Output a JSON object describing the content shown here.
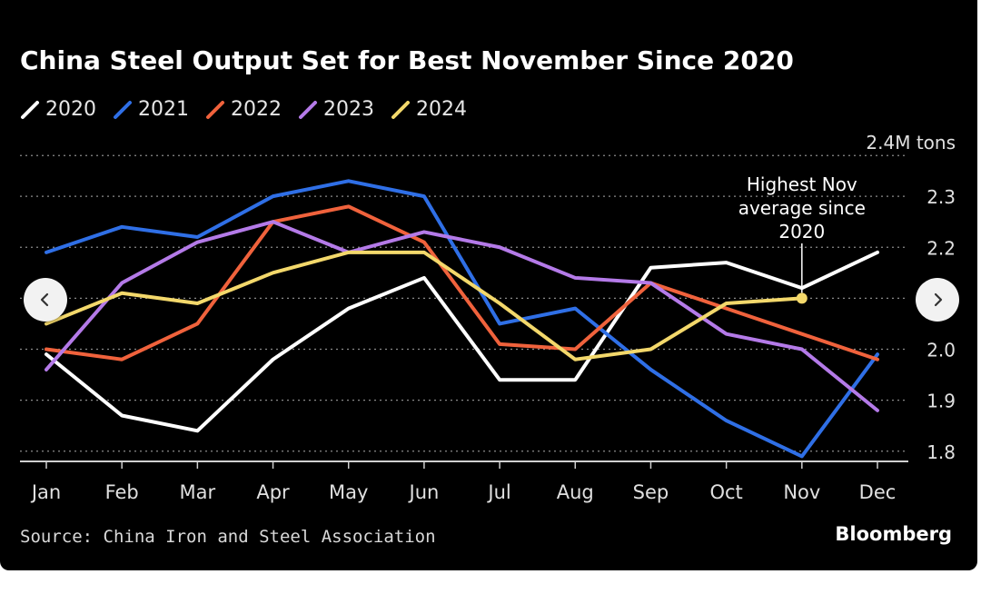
{
  "title": "China Steel Output Set for Best November Since 2020",
  "source": "Source: China Iron and Steel Association",
  "brand": "Bloomberg",
  "nav": {
    "prev_icon": "chevron-left-icon",
    "next_icon": "chevron-right-icon"
  },
  "chart_data": {
    "type": "line",
    "title": "China Steel Output Set for Best November Since 2020",
    "unit_label": "2.4M tons",
    "x": [
      "Jan",
      "Feb",
      "Mar",
      "Apr",
      "May",
      "Jun",
      "Jul",
      "Aug",
      "Sep",
      "Oct",
      "Nov",
      "Dec"
    ],
    "ylim": [
      1.78,
      2.4
    ],
    "yticks": [
      1.8,
      1.9,
      2.0,
      2.2,
      2.3
    ],
    "ytick_labels": [
      "1.8",
      "1.9",
      "2.0",
      "2.2",
      "2.3"
    ],
    "grid": true,
    "series": [
      {
        "name": "2020",
        "color": "#ffffff",
        "values": [
          1.99,
          1.87,
          1.84,
          1.98,
          2.08,
          2.14,
          1.94,
          1.94,
          2.16,
          2.17,
          2.12,
          2.19
        ]
      },
      {
        "name": "2021",
        "color": "#2f6fe6",
        "values": [
          2.19,
          2.24,
          2.22,
          2.3,
          2.33,
          2.3,
          2.05,
          2.08,
          1.96,
          1.86,
          1.79,
          1.99
        ]
      },
      {
        "name": "2022",
        "color": "#f0623c",
        "values": [
          2.0,
          1.98,
          2.05,
          2.25,
          2.28,
          2.21,
          2.01,
          2.0,
          2.13,
          2.08,
          2.03,
          1.98
        ]
      },
      {
        "name": "2023",
        "color": "#b47ae8",
        "values": [
          1.96,
          2.13,
          2.21,
          2.25,
          2.19,
          2.23,
          2.2,
          2.14,
          2.13,
          2.03,
          2.0,
          1.88
        ]
      },
      {
        "name": "2024",
        "color": "#f3d86b",
        "values": [
          2.05,
          2.11,
          2.09,
          2.15,
          2.19,
          2.19,
          2.09,
          1.98,
          2.0,
          2.09,
          2.1,
          null
        ]
      }
    ],
    "annotation": {
      "text_lines": [
        "Highest Nov",
        "average since",
        "2020"
      ],
      "series": "2024",
      "x": "Nov",
      "y": 2.1
    }
  }
}
